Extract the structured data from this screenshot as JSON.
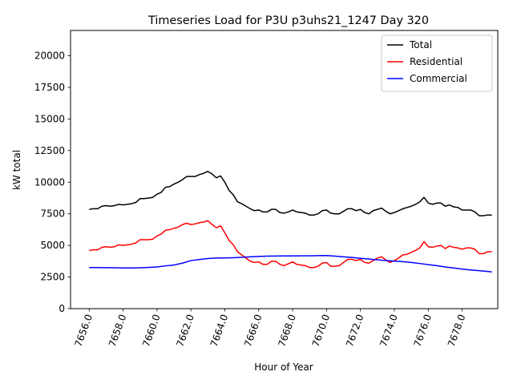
{
  "chart_data": {
    "type": "line",
    "title": "Timeseries Load for P3U p3uhs21_1247  Day 320",
    "xlabel": "Hour of Year",
    "ylabel": "kW total",
    "xlim": [
      7654.9,
      7680.1
    ],
    "ylim": [
      0,
      22000
    ],
    "xticks": [
      7656,
      7658,
      7660,
      7662,
      7664,
      7666,
      7668,
      7670,
      7672,
      7674,
      7676,
      7678
    ],
    "xtick_labels": [
      "7656.0",
      "7658.0",
      "7660.0",
      "7662.0",
      "7664.0",
      "7666.0",
      "7668.0",
      "7670.0",
      "7672.0",
      "7674.0",
      "7676.0",
      "7678.0"
    ],
    "yticks": [
      0,
      2500,
      5000,
      7500,
      10000,
      12500,
      15000,
      17500,
      20000
    ],
    "ytick_labels": [
      "0",
      "2500",
      "5000",
      "7500",
      "10000",
      "12500",
      "15000",
      "17500",
      "20000"
    ],
    "legend_position": "top-right",
    "series": [
      {
        "name": "Total",
        "color": "#000000",
        "x": [
          7656.0,
          7656.25,
          7656.5,
          7656.75,
          7657.0,
          7657.25,
          7657.5,
          7657.75,
          7658.0,
          7658.25,
          7658.5,
          7658.75,
          7659.0,
          7659.25,
          7659.5,
          7659.75,
          7660.0,
          7660.25,
          7660.5,
          7660.75,
          7661.0,
          7661.25,
          7661.5,
          7661.75,
          7662.0,
          7662.25,
          7662.5,
          7662.75,
          7663.0,
          7663.25,
          7663.5,
          7663.75,
          7664.0,
          7664.25,
          7664.5,
          7664.75,
          7665.0,
          7665.25,
          7665.5,
          7665.75,
          7666.0,
          7666.25,
          7666.5,
          7666.75,
          7667.0,
          7667.25,
          7667.5,
          7667.75,
          7668.0,
          7668.25,
          7668.5,
          7668.75,
          7669.0,
          7669.25,
          7669.5,
          7669.75,
          7670.0,
          7670.25,
          7670.5,
          7670.75,
          7671.0,
          7671.25,
          7671.5,
          7671.75,
          7672.0,
          7672.25,
          7672.5,
          7672.75,
          7673.0,
          7673.25,
          7673.5,
          7673.75,
          7674.0,
          7674.25,
          7674.5,
          7674.75,
          7675.0,
          7675.25,
          7675.5,
          7675.75,
          7676.0,
          7676.25,
          7676.5,
          7676.75,
          7677.0,
          7677.25,
          7677.5,
          7677.75,
          7678.0,
          7678.25,
          7678.5,
          7678.75,
          7679.0,
          7679.25,
          7679.5,
          7679.75
        ],
        "values": [
          7850,
          7900,
          7900,
          8100,
          8150,
          8100,
          8150,
          8250,
          8200,
          8250,
          8300,
          8400,
          8700,
          8700,
          8750,
          8800,
          9050,
          9200,
          9600,
          9650,
          9850,
          10000,
          10200,
          10450,
          10450,
          10450,
          10600,
          10700,
          10850,
          10650,
          10350,
          10500,
          10000,
          9350,
          9000,
          8450,
          8300,
          8100,
          7900,
          7750,
          7800,
          7650,
          7650,
          7850,
          7850,
          7600,
          7550,
          7650,
          7800,
          7650,
          7600,
          7550,
          7400,
          7400,
          7500,
          7750,
          7800,
          7550,
          7500,
          7500,
          7700,
          7900,
          7900,
          7750,
          7850,
          7600,
          7500,
          7750,
          7850,
          7950,
          7700,
          7500,
          7600,
          7750,
          7900,
          8000,
          8100,
          8250,
          8450,
          8800,
          8350,
          8250,
          8350,
          8350,
          8100,
          8200,
          8050,
          8000,
          7800,
          7800,
          7800,
          7650,
          7350,
          7350,
          7400,
          7400
        ]
      },
      {
        "name": "Residential",
        "color": "#ff0000",
        "x": [
          7656.0,
          7656.25,
          7656.5,
          7656.75,
          7657.0,
          7657.25,
          7657.5,
          7657.75,
          7658.0,
          7658.25,
          7658.5,
          7658.75,
          7659.0,
          7659.25,
          7659.5,
          7659.75,
          7660.0,
          7660.25,
          7660.5,
          7660.75,
          7661.0,
          7661.25,
          7661.5,
          7661.75,
          7662.0,
          7662.25,
          7662.5,
          7662.75,
          7663.0,
          7663.25,
          7663.5,
          7663.75,
          7664.0,
          7664.25,
          7664.5,
          7664.75,
          7665.0,
          7665.25,
          7665.5,
          7665.75,
          7666.0,
          7666.25,
          7666.5,
          7666.75,
          7667.0,
          7667.25,
          7667.5,
          7667.75,
          7668.0,
          7668.25,
          7668.5,
          7668.75,
          7669.0,
          7669.25,
          7669.5,
          7669.75,
          7670.0,
          7670.25,
          7670.5,
          7670.75,
          7671.0,
          7671.25,
          7671.5,
          7671.75,
          7672.0,
          7672.25,
          7672.5,
          7672.75,
          7673.0,
          7673.25,
          7673.5,
          7673.75,
          7674.0,
          7674.25,
          7674.5,
          7674.75,
          7675.0,
          7675.25,
          7675.5,
          7675.75,
          7676.0,
          7676.25,
          7676.5,
          7676.75,
          7677.0,
          7677.25,
          7677.5,
          7677.75,
          7678.0,
          7678.25,
          7678.5,
          7678.75,
          7679.0,
          7679.25,
          7679.5,
          7679.75
        ],
        "values": [
          4600,
          4650,
          4650,
          4850,
          4900,
          4850,
          4900,
          5050,
          5000,
          5050,
          5100,
          5200,
          5450,
          5450,
          5450,
          5500,
          5750,
          5900,
          6200,
          6250,
          6350,
          6450,
          6650,
          6750,
          6650,
          6700,
          6800,
          6850,
          6950,
          6650,
          6400,
          6550,
          6000,
          5400,
          5050,
          4500,
          4250,
          4000,
          3750,
          3650,
          3700,
          3500,
          3500,
          3750,
          3750,
          3500,
          3400,
          3550,
          3700,
          3500,
          3450,
          3400,
          3250,
          3250,
          3350,
          3600,
          3650,
          3350,
          3350,
          3400,
          3650,
          3900,
          3900,
          3800,
          3900,
          3650,
          3600,
          3800,
          4000,
          4100,
          3850,
          3650,
          3800,
          4000,
          4250,
          4300,
          4450,
          4600,
          4800,
          5300,
          4900,
          4850,
          4950,
          5000,
          4750,
          4950,
          4850,
          4800,
          4700,
          4800,
          4800,
          4700,
          4350,
          4350,
          4500,
          4500
        ]
      },
      {
        "name": "Commercial",
        "color": "#0000ff",
        "x": [
          7656.0,
          7656.5,
          7657.0,
          7657.5,
          7658.0,
          7658.5,
          7659.0,
          7659.5,
          7660.0,
          7660.5,
          7661.0,
          7661.5,
          7662.0,
          7662.5,
          7663.0,
          7663.5,
          7664.0,
          7664.5,
          7665.0,
          7665.5,
          7666.0,
          7666.5,
          7667.0,
          7667.5,
          7668.0,
          7668.5,
          7669.0,
          7669.5,
          7670.0,
          7670.5,
          7671.0,
          7671.5,
          7672.0,
          7672.5,
          7673.0,
          7673.5,
          7674.0,
          7674.5,
          7675.0,
          7675.5,
          7676.0,
          7676.5,
          7677.0,
          7677.5,
          7678.0,
          7678.5,
          7679.0,
          7679.5,
          7679.75
        ],
        "values": [
          3250,
          3250,
          3240,
          3230,
          3220,
          3220,
          3230,
          3260,
          3300,
          3380,
          3450,
          3600,
          3800,
          3880,
          3960,
          4000,
          4010,
          4030,
          4060,
          4100,
          4130,
          4150,
          4160,
          4170,
          4170,
          4175,
          4180,
          4190,
          4200,
          4150,
          4100,
          4050,
          3980,
          3920,
          3860,
          3800,
          3760,
          3720,
          3650,
          3570,
          3480,
          3400,
          3300,
          3220,
          3130,
          3060,
          3000,
          2940,
          2900
        ]
      }
    ]
  }
}
